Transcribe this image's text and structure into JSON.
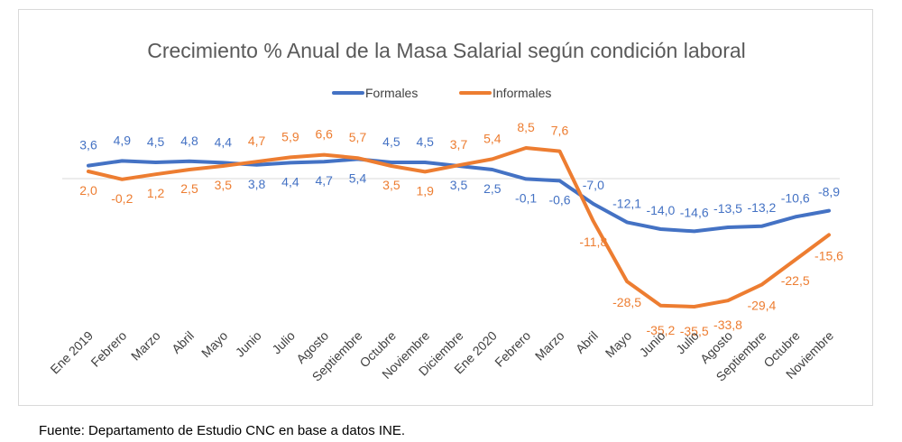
{
  "chart_data": {
    "type": "line",
    "title": "Crecimiento % Anual de la Masa Salarial según condición laboral",
    "categories": [
      "Ene 2019",
      "Febrero",
      "Marzo",
      "Abril",
      "Mayo",
      "Junio",
      "Julio",
      "Agosto",
      "Septiembre",
      "Octubre",
      "Noviembre",
      "Diciembre",
      "Ene 2020",
      "Febrero",
      "Marzo",
      "Abril",
      "Mayo",
      "Junio",
      "Julio",
      "Agosto",
      "Septiembre",
      "Octubre",
      "Noviembre"
    ],
    "series": [
      {
        "name": "Formales",
        "color": "#4472c4",
        "values": [
          3.6,
          4.9,
          4.5,
          4.8,
          4.4,
          3.8,
          4.4,
          4.7,
          5.4,
          4.5,
          4.5,
          3.5,
          2.5,
          -0.1,
          -0.6,
          -7.0,
          -12.1,
          -14.0,
          -14.6,
          -13.5,
          -13.2,
          -10.6,
          -8.9
        ],
        "labels": [
          "3,6",
          "4,9",
          "4,5",
          "4,8",
          "4,4",
          "3,8",
          "4,4",
          "4,7",
          "5,4",
          "4,5",
          "4,5",
          "3,5",
          "2,5",
          "-0,1",
          "-0,6",
          "-7,0",
          "-12,1",
          "-14,0",
          "-14,6",
          "-13,5",
          "-13,2",
          "-10,6",
          "-8,9"
        ]
      },
      {
        "name": "Informales",
        "color": "#ed7d31",
        "values": [
          2.0,
          -0.2,
          1.2,
          2.5,
          3.5,
          4.7,
          5.9,
          6.6,
          5.7,
          3.5,
          1.9,
          3.7,
          5.4,
          8.5,
          7.6,
          -11.8,
          -28.5,
          -35.2,
          -35.5,
          -33.8,
          -29.4,
          -22.5,
          -15.6
        ],
        "labels": [
          "2,0",
          "-0,2",
          "1,2",
          "2,5",
          "3,5",
          "4,7",
          "5,9",
          "6,6",
          "5,7",
          "3,5",
          "1,9",
          "3,7",
          "5,4",
          "8,5",
          "7,6",
          "-11,8",
          "-28,5",
          "-35,2",
          "-35,5",
          "-33,8",
          "-29,4",
          "-22,5",
          "-15,6"
        ]
      }
    ],
    "ylim": [
      -40,
      12
    ],
    "grid": false,
    "legend": "top"
  },
  "footnote": "Fuente: Departamento de Estudio CNC en base a datos INE."
}
